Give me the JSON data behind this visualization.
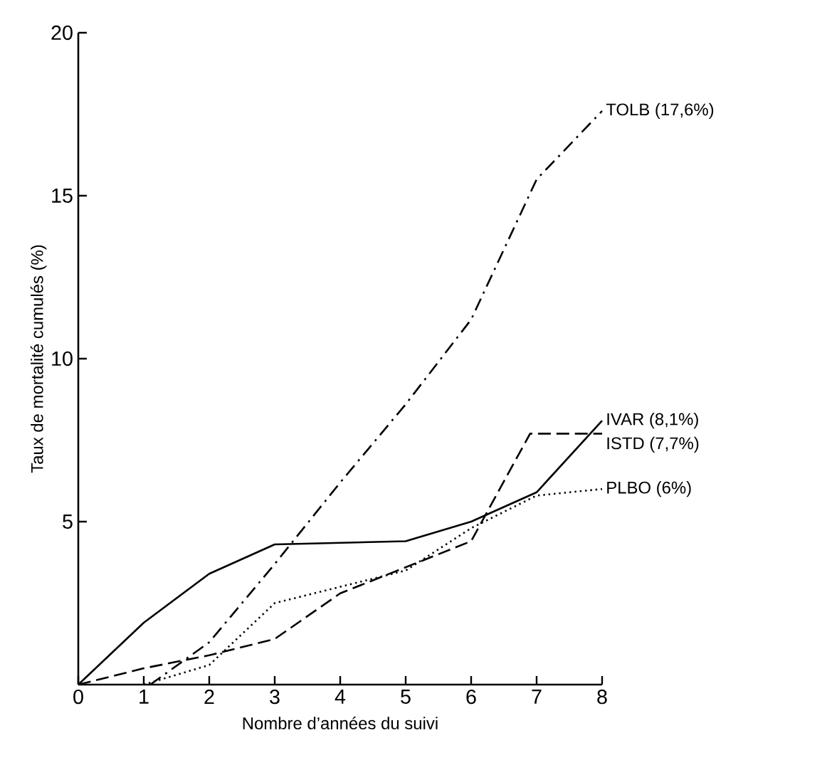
{
  "chart_data": {
    "type": "line",
    "xlabel": "Nombre d’années du suivi",
    "ylabel": "Taux de mortalité cumulés  (%)",
    "xlim": [
      0,
      8
    ],
    "ylim": [
      0,
      20
    ],
    "xticks": [
      0,
      1,
      2,
      3,
      4,
      5,
      6,
      7,
      8
    ],
    "yticks": [
      5,
      10,
      15,
      20
    ],
    "grid": false,
    "legend": false,
    "series": [
      {
        "name": "TOLB (17,6%)",
        "color": "#000000",
        "line_style": "dashdot",
        "x": [
          1.1,
          2,
          3,
          4,
          5,
          6,
          7,
          8
        ],
        "values": [
          0,
          1.3,
          3.7,
          6.2,
          8.6,
          11.2,
          15.5,
          17.6
        ]
      },
      {
        "name": "IVAR (8,1%)",
        "color": "#000000",
        "line_style": "solid",
        "x": [
          0,
          1,
          2,
          3,
          5,
          6,
          7,
          8
        ],
        "values": [
          0,
          1.9,
          3.4,
          4.3,
          4.4,
          5.0,
          5.9,
          8.1
        ]
      },
      {
        "name": "ISTD (7,7%)",
        "color": "#000000",
        "line_style": "dashed",
        "x": [
          0,
          1,
          2,
          3,
          4,
          6,
          6.9,
          8
        ],
        "values": [
          0,
          0.5,
          0.9,
          1.4,
          2.8,
          4.4,
          7.7,
          7.7
        ]
      },
      {
        "name": "PLBO (6%)",
        "color": "#000000",
        "line_style": "dotted",
        "x": [
          1,
          2,
          3,
          4,
          5,
          6,
          7,
          8
        ],
        "values": [
          0,
          0.6,
          2.5,
          3.0,
          3.5,
          4.8,
          5.8,
          6.0
        ]
      }
    ]
  }
}
